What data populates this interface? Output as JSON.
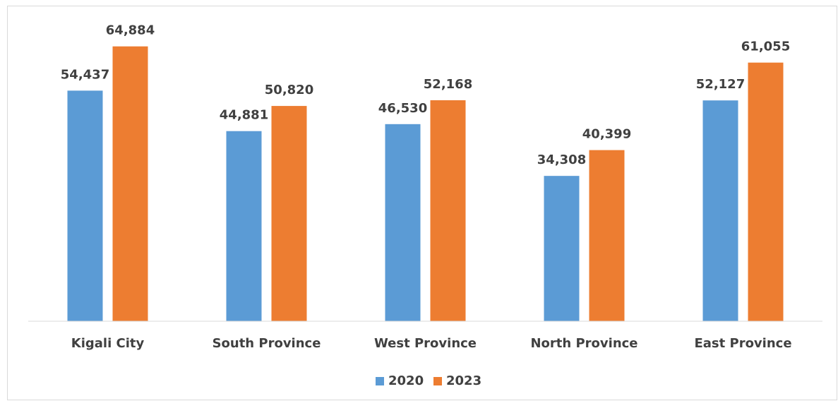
{
  "chart_data": {
    "type": "bar",
    "categories": [
      "Kigali City",
      "South Province",
      "West Province",
      "North Province",
      "East Province"
    ],
    "series": [
      {
        "name": "2020",
        "color": "#5b9bd5",
        "values": [
          54437,
          44881,
          46530,
          34308,
          52127
        ],
        "value_labels": [
          "54,437",
          "44,881",
          "46,530",
          "34,308",
          "52,127"
        ]
      },
      {
        "name": "2023",
        "color": "#ed7d31",
        "values": [
          64884,
          50820,
          52168,
          40399,
          61055
        ],
        "value_labels": [
          "64,884",
          "50,820",
          "52,168",
          "40,399",
          "61,055"
        ]
      }
    ],
    "ylim": [
      0,
      70000
    ],
    "legend": "bottom"
  }
}
